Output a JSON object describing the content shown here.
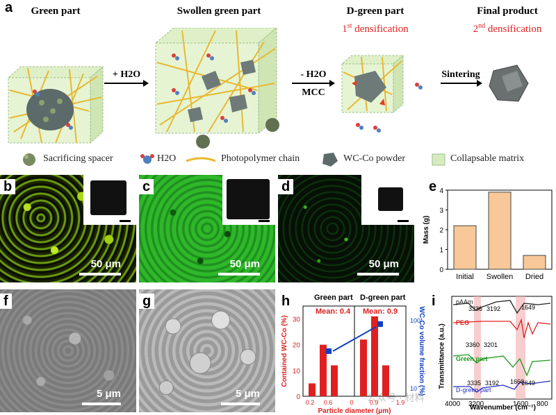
{
  "figure": {
    "panel_a": {
      "label": "a",
      "stages": [
        {
          "title": "Green part",
          "caption_main": "",
          "caption_sup": "",
          "caption_rest": ""
        },
        {
          "title": "Swollen green part",
          "caption_main": "",
          "caption_sup": "",
          "caption_rest": ""
        },
        {
          "title": "D-green part",
          "caption_main": "1",
          "caption_sup": "st",
          "caption_rest": " densification"
        },
        {
          "title": "Final product",
          "caption_main": "2",
          "caption_sup": "nd",
          "caption_rest": " densification"
        }
      ],
      "arrows": [
        {
          "top": "+ H2O",
          "bottom": ""
        },
        {
          "top": "- H2O",
          "bottom": "MCC"
        },
        {
          "top": "Sintering",
          "bottom": ""
        }
      ],
      "legend": [
        {
          "label": "Sacrificing spacer",
          "icon": "spacer-icon"
        },
        {
          "label": "H2O",
          "icon": "water-molecule-icon"
        },
        {
          "label": "Photopolymer chain",
          "icon": "polymer-chain-icon"
        },
        {
          "label": "WC-Co powder",
          "icon": "powder-icon"
        },
        {
          "label": "Collapsable matrix",
          "icon": "matrix-icon"
        }
      ]
    },
    "panel_b": {
      "label": "b",
      "scale": "50 μm"
    },
    "panel_c": {
      "label": "c",
      "scale": "50 μm"
    },
    "panel_d": {
      "label": "d",
      "scale": "50 μm"
    },
    "panel_f": {
      "label": "f",
      "scale": "5 μm"
    },
    "panel_g": {
      "label": "g",
      "scale": "5 μm"
    },
    "panel_e": {
      "label": "e"
    },
    "panel_h": {
      "label": "h",
      "left_title": "Green part",
      "right_title": "D-green part",
      "left_mean": "Mean: 0.4",
      "right_mean": "Mean: 0.9"
    },
    "panel_i": {
      "label": "i",
      "ylabel": "Transmittance (a.u.)",
      "xlabel": "Wavenumber (cm⁻¹)",
      "xticks": [
        "4000",
        "3200",
        "1600",
        "800"
      ],
      "curves": [
        {
          "name": "pAAm",
          "color": "#222222",
          "peaks": [
            "3336",
            "3192",
            "1649"
          ]
        },
        {
          "name": "PEG",
          "color": "#e02020",
          "peaks": []
        },
        {
          "name": "Green part",
          "color": "#1a9a1a",
          "peaks": [
            "3360",
            "3201",
            "1660"
          ]
        },
        {
          "name": "D-green part",
          "color": "#2030c8",
          "peaks": [
            "3335",
            "3192",
            "1649"
          ]
        }
      ],
      "watermark": "公众号 · 材料"
    }
  },
  "chart_data": [
    {
      "type": "bar",
      "title": "",
      "xlabel": "",
      "ylabel": "Mass (g)",
      "categories": [
        "Initial",
        "Swollen",
        "Dried"
      ],
      "values": [
        2.2,
        3.9,
        0.7
      ],
      "ylim": [
        0,
        4
      ],
      "yticks": [
        "0",
        "1",
        "2",
        "3",
        "4"
      ],
      "bar_color": "#f8c898"
    },
    {
      "type": "bar",
      "title": "",
      "xlabel": "Particle diameter (μm)",
      "ylabel": "Contained WC-Co (%)",
      "y2label": "WC-Co volume fraction (%)",
      "left_xticks": [
        "0.2",
        "0.6",
        "0"
      ],
      "right_xticks": [
        "0.9",
        "1.9"
      ],
      "left_yticks": [
        "0",
        "10",
        "20",
        "30"
      ],
      "right_yticks": [
        "100",
        "10"
      ],
      "ylim": [
        0,
        35
      ],
      "series": [
        {
          "name": "Green part",
          "values": [
            5,
            20,
            12
          ]
        },
        {
          "name": "D-green part",
          "values": [
            22,
            31,
            12
          ]
        }
      ],
      "volume_fraction": [
        {
          "x": 0.5,
          "y": 50
        },
        {
          "x": 1.5,
          "y": 80
        }
      ],
      "bar_color": "#e02020",
      "marker_color": "#1040c0"
    }
  ]
}
